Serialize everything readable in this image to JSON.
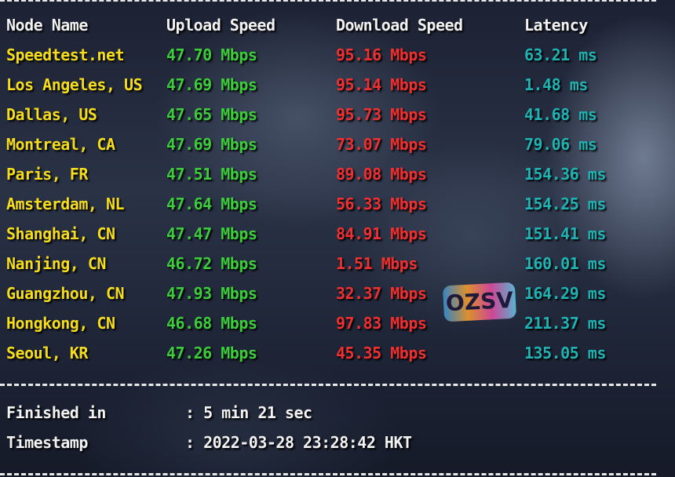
{
  "headers": {
    "node": "Node Name",
    "upload": "Upload Speed",
    "download": "Download Speed",
    "latency": "Latency"
  },
  "rows": [
    {
      "node": "Speedtest.net",
      "upload": "47.70 Mbps",
      "download": "95.16 Mbps",
      "latency": "63.21 ms"
    },
    {
      "node": "Los Angeles, US",
      "upload": "47.69 Mbps",
      "download": "95.14 Mbps",
      "latency": "1.48 ms"
    },
    {
      "node": "Dallas, US",
      "upload": "47.65 Mbps",
      "download": "95.73 Mbps",
      "latency": "41.68 ms"
    },
    {
      "node": "Montreal, CA",
      "upload": "47.69 Mbps",
      "download": "73.07 Mbps",
      "latency": "79.06 ms"
    },
    {
      "node": "Paris, FR",
      "upload": "47.51 Mbps",
      "download": "89.08 Mbps",
      "latency": "154.36 ms"
    },
    {
      "node": "Amsterdam, NL",
      "upload": "47.64 Mbps",
      "download": "56.33 Mbps",
      "latency": "154.25 ms"
    },
    {
      "node": "Shanghai, CN",
      "upload": "47.47 Mbps",
      "download": "84.91 Mbps",
      "latency": "151.41 ms"
    },
    {
      "node": "Nanjing, CN",
      "upload": "46.72 Mbps",
      "download": "1.51 Mbps",
      "latency": "160.01 ms"
    },
    {
      "node": "Guangzhou, CN",
      "upload": "47.93 Mbps",
      "download": "32.37 Mbps",
      "latency": "164.29 ms"
    },
    {
      "node": "Hongkong, CN",
      "upload": "46.68 Mbps",
      "download": "97.83 Mbps",
      "latency": "211.37 ms"
    },
    {
      "node": "Seoul, KR",
      "upload": "47.26 Mbps",
      "download": "45.35 Mbps",
      "latency": "135.05 ms"
    }
  ],
  "footer": {
    "finished_label": "Finished in",
    "finished_value": ": 5 min 21 sec",
    "timestamp_label": "Timestamp",
    "timestamp_value": ": 2022-03-28 23:28:42 HKT"
  },
  "watermark": "OZSV",
  "colors": {
    "node": "#f5dd1e",
    "upload": "#3ccc3c",
    "download": "#f03030",
    "latency": "#1fb3b3",
    "header": "#f2f2f2"
  }
}
